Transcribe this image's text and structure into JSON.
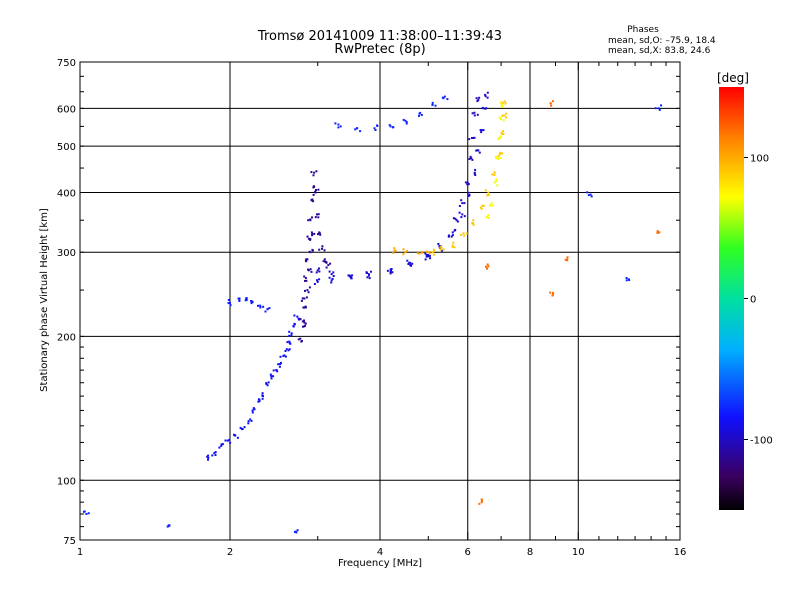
{
  "chart_data": {
    "type": "scatter",
    "title": "Tromsø 20141009 11:38:00–11:39:43",
    "subtitle": "RwPretec (8p)",
    "phases_box": {
      "title": "Phases",
      "line_o": "mean, sd,O: –75.9, 18.4",
      "line_x": "mean, sd,X:  83.8, 24.6"
    },
    "xlabel": "Frequency [MHz]",
    "ylabel": "Stationary phase Virtual Height [km]",
    "x_scale": "log",
    "y_scale": "log",
    "xlim": [
      1,
      16
    ],
    "ylim": [
      75,
      750
    ],
    "x_ticks": [
      1,
      2,
      4,
      6,
      8,
      10,
      16
    ],
    "y_ticks": [
      75,
      100,
      200,
      300,
      400,
      500,
      600,
      750
    ],
    "x_grid": [
      2,
      4,
      6,
      8,
      10
    ],
    "y_grid": [
      100,
      200,
      300,
      400,
      500,
      600
    ],
    "grid": true,
    "colorbar": {
      "label": "[deg]",
      "range": [
        -150,
        150
      ],
      "ticks": [
        100,
        0,
        -100
      ]
    },
    "traces": [
      {
        "phase": -85,
        "points": [
          [
            1.8,
            112
          ],
          [
            1.86,
            114
          ],
          [
            1.92,
            118
          ],
          [
            1.98,
            121
          ],
          [
            2.05,
            124
          ],
          [
            2.12,
            128
          ],
          [
            2.18,
            133
          ],
          [
            2.22,
            140
          ],
          [
            2.28,
            146
          ],
          [
            2.33,
            150
          ],
          [
            2.38,
            158
          ],
          [
            2.42,
            165
          ],
          [
            2.48,
            170
          ],
          [
            2.52,
            175
          ],
          [
            2.56,
            182
          ],
          [
            2.6,
            188
          ],
          [
            2.63,
            195
          ],
          [
            2.66,
            203
          ],
          [
            2.7,
            212
          ],
          [
            2.73,
            220
          ]
        ]
      },
      {
        "phase": -80,
        "points": [
          [
            2.0,
            235
          ],
          [
            2.08,
            240
          ],
          [
            2.15,
            238
          ],
          [
            2.22,
            236
          ],
          [
            2.3,
            232
          ],
          [
            2.38,
            228
          ]
        ]
      },
      {
        "phase": -112,
        "points": [
          [
            2.78,
            195
          ],
          [
            2.8,
            215
          ],
          [
            2.82,
            240
          ],
          [
            2.84,
            265
          ],
          [
            2.86,
            290
          ],
          [
            2.88,
            320
          ],
          [
            2.9,
            350
          ],
          [
            2.92,
            385
          ],
          [
            2.94,
            410
          ],
          [
            2.95,
            440
          ],
          [
            2.97,
            400
          ],
          [
            2.99,
            360
          ],
          [
            3.02,
            330
          ],
          [
            3.06,
            305
          ],
          [
            3.1,
            290
          ],
          [
            3.15,
            282
          ]
        ]
      },
      {
        "phase": -100,
        "points": [
          [
            3.0,
            275
          ],
          [
            3.2,
            270
          ],
          [
            3.5,
            267
          ],
          [
            3.8,
            268
          ],
          [
            4.2,
            272
          ],
          [
            4.6,
            282
          ],
          [
            5.0,
            294
          ],
          [
            5.3,
            306
          ],
          [
            5.5,
            325
          ],
          [
            5.7,
            350
          ],
          [
            5.85,
            380
          ],
          [
            5.95,
            420
          ],
          [
            6.05,
            470
          ],
          [
            6.12,
            520
          ],
          [
            6.2,
            580
          ],
          [
            6.25,
            630
          ]
        ]
      },
      {
        "phase": -92,
        "points": [
          [
            3.0,
            260
          ],
          [
            3.2,
            262
          ],
          [
            3.5,
            265
          ],
          [
            3.8,
            270
          ],
          [
            4.2,
            276
          ],
          [
            4.6,
            285
          ],
          [
            5.0,
            296
          ]
        ]
      },
      {
        "phase": -95,
        "points": [
          [
            5.3,
            308
          ],
          [
            5.6,
            330
          ],
          [
            5.85,
            360
          ],
          [
            6.05,
            395
          ],
          [
            6.2,
            440
          ],
          [
            6.3,
            490
          ],
          [
            6.4,
            540
          ],
          [
            6.45,
            600
          ],
          [
            6.5,
            640
          ]
        ]
      },
      {
        "phase": 100,
        "points": [
          [
            4.3,
            302
          ],
          [
            4.5,
            300
          ],
          [
            4.8,
            298
          ],
          [
            5.0,
            300
          ]
        ]
      },
      {
        "phase": 90,
        "points": [
          [
            5.1,
            300
          ],
          [
            5.3,
            304
          ],
          [
            5.6,
            310
          ],
          [
            5.9,
            325
          ],
          [
            6.15,
            345
          ],
          [
            6.4,
            370
          ],
          [
            6.6,
            400
          ],
          [
            6.8,
            440
          ],
          [
            6.95,
            480
          ],
          [
            7.05,
            530
          ],
          [
            7.1,
            580
          ],
          [
            7.12,
            620
          ]
        ]
      },
      {
        "phase": 70,
        "points": [
          [
            6.55,
            355
          ],
          [
            6.7,
            380
          ],
          [
            6.8,
            420
          ],
          [
            6.9,
            470
          ],
          [
            6.95,
            520
          ],
          [
            7.0,
            570
          ],
          [
            7.02,
            610
          ]
        ]
      },
      {
        "phase": -78,
        "points": [
          [
            3.3,
            555
          ],
          [
            3.6,
            545
          ],
          [
            3.9,
            545
          ],
          [
            4.2,
            550
          ],
          [
            4.5,
            565
          ],
          [
            4.8,
            585
          ],
          [
            5.1,
            610
          ],
          [
            5.4,
            635
          ]
        ]
      },
      {
        "phase": -110,
        "points": [
          [
            2.82,
            210
          ],
          [
            2.84,
            230
          ],
          [
            2.86,
            250
          ],
          [
            2.88,
            275
          ],
          [
            2.9,
            300
          ],
          [
            2.92,
            330
          ]
        ]
      },
      {
        "phase": -78,
        "points": [
          [
            1.03,
            85
          ],
          [
            1.5,
            80
          ],
          [
            2.7,
            78
          ]
        ]
      },
      {
        "phase": -78,
        "points": [
          [
            10.5,
            395
          ],
          [
            12.5,
            265
          ],
          [
            14.5,
            600
          ]
        ]
      },
      {
        "phase": 120,
        "points": [
          [
            6.4,
            90
          ],
          [
            6.6,
            280
          ],
          [
            8.9,
            245
          ],
          [
            9.5,
            290
          ],
          [
            14.5,
            330
          ],
          [
            8.8,
            615
          ]
        ]
      }
    ]
  }
}
